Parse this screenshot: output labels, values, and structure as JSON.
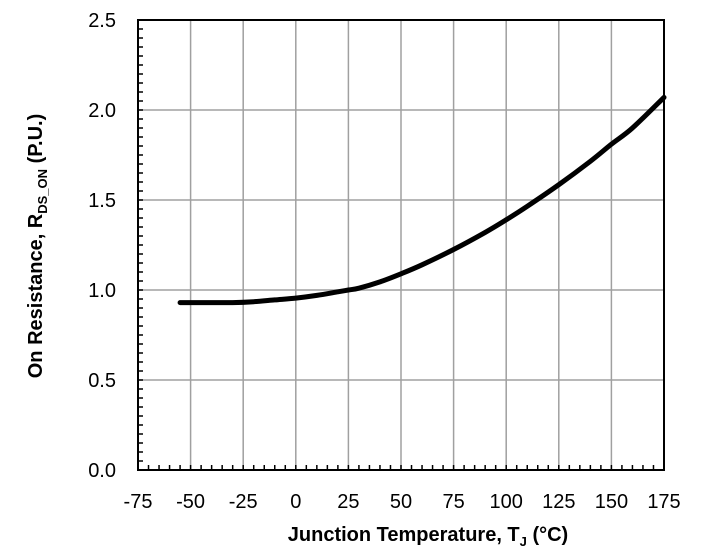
{
  "chart_data": {
    "type": "line",
    "title": "",
    "xlabel": {
      "main": "Junction Temperature, T",
      "sub": "J",
      "tail": " (°C)"
    },
    "ylabel": {
      "main": "On Resistance, R",
      "sub": "DS_ON",
      "tail": " (P.U.)"
    },
    "xlim": [
      -75,
      175
    ],
    "ylim": [
      0,
      2.5
    ],
    "xticks": [
      -75,
      -50,
      -25,
      0,
      25,
      50,
      75,
      100,
      125,
      150,
      175
    ],
    "xtick_labels": [
      "-75",
      "-50",
      "-25",
      "0",
      "25",
      "50",
      "75",
      "100",
      "125",
      "150",
      "175"
    ],
    "yticks": [
      0,
      0.5,
      1,
      1.5,
      2,
      2.5
    ],
    "ytick_labels": [
      "0.0",
      "0.5",
      "1.0",
      "1.5",
      "2.0",
      "2.5"
    ],
    "grid": true,
    "line_color": "#000000",
    "grid_color": "#a0a0a0",
    "series": [
      {
        "x": [
          -55,
          -50,
          -40,
          -30,
          -20,
          -10,
          0,
          10,
          20,
          25,
          30,
          40,
          50,
          60,
          75,
          90,
          100,
          110,
          125,
          140,
          150,
          160,
          175
        ],
        "values": [
          0.93,
          0.93,
          0.93,
          0.93,
          0.935,
          0.945,
          0.955,
          0.97,
          0.99,
          1.0,
          1.01,
          1.045,
          1.09,
          1.14,
          1.225,
          1.32,
          1.39,
          1.465,
          1.585,
          1.715,
          1.81,
          1.9,
          2.07
        ]
      }
    ]
  }
}
